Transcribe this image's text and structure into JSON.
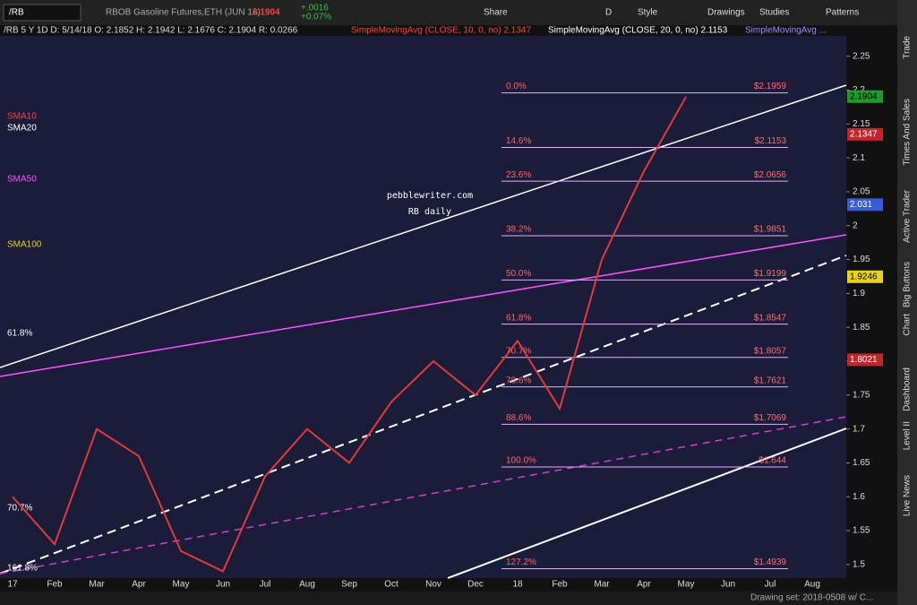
{
  "toolbar": {
    "symbol": "/RB",
    "description": "RBOB Gasoline Futures,ETH (JUN 18)",
    "last": "2.1904",
    "change": "+.0016",
    "change_pct": "+0.07%",
    "buttons": [
      "Share",
      "D",
      "Style",
      "Drawings",
      "Studies",
      "Patterns"
    ]
  },
  "study_bar": {
    "info": "/RB 5 Y 1D  D: 5/14/18  O: 2.1852  H: 2.1942  L: 2.1676  C: 2.1904  R: 0.0266",
    "studies": [
      "SimpleMovingAvg (CLOSE, 10, 0, no)  2.1347",
      "SimpleMovingAvg (CLOSE, 20, 0, no)  2.1153",
      "SimpleMovingAvg ..."
    ]
  },
  "side_tabs": [
    "Trade",
    "Times And Sales",
    "Active Trader",
    "Big Buttons",
    "Chart",
    "Dashboard",
    "Level II",
    "Live News"
  ],
  "watermark": [
    "pebblewriter.com",
    "RB daily"
  ],
  "left_labels": [
    "SMA10",
    "SMA20",
    "SMA50",
    "SMA100",
    "61.8%",
    "70.7%",
    "161.8%"
  ],
  "footer": "Drawing set: 2018-0508 w/ C...",
  "chart_data": {
    "type": "line",
    "categories": [
      "17",
      "Feb",
      "Mar",
      "Apr",
      "May",
      "Jun",
      "Jul",
      "Aug",
      "Sep",
      "Oct",
      "Nov",
      "Dec",
      "18",
      "Feb",
      "Mar",
      "Apr",
      "May",
      "Jun",
      "Jul",
      "Aug"
    ],
    "series": [
      {
        "name": "RB",
        "color": "#e23a3a",
        "values": [
          1.6,
          1.53,
          1.7,
          1.66,
          1.52,
          1.49,
          1.63,
          1.7,
          1.65,
          1.74,
          1.8,
          1.75,
          1.83,
          1.73,
          1.95,
          2.08,
          2.19,
          null,
          null,
          null
        ]
      }
    ],
    "ylim": [
      1.48,
      2.28
    ],
    "yticks": [
      1.5,
      1.55,
      1.6,
      1.65,
      1.7,
      1.75,
      1.8,
      1.85,
      1.9,
      1.95,
      2,
      2.05,
      2.1,
      2.15,
      2.2,
      2.25
    ],
    "grid": false,
    "price_tags": [
      {
        "value": 2.1904,
        "color": "#1f9a2e"
      },
      {
        "value": 2.1347,
        "color": "#c0262b"
      },
      {
        "value": 2.031,
        "color": "#3a5bd8"
      },
      {
        "value": 1.9246,
        "color": "#e8d21d"
      },
      {
        "value": 1.8021,
        "color": "#c0262b"
      }
    ],
    "fib_levels": [
      {
        "pct": "0.0%",
        "value": 2.1959,
        "label": "$2.1959"
      },
      {
        "pct": "14.6%",
        "value": 2.1153,
        "label": "$2.1153"
      },
      {
        "pct": "23.6%",
        "value": 2.0656,
        "label": "$2.0656"
      },
      {
        "pct": "38.2%",
        "value": 1.9851,
        "label": "$1.9851"
      },
      {
        "pct": "50.0%",
        "value": 1.9199,
        "label": "$1.9199"
      },
      {
        "pct": "61.8%",
        "value": 1.8547,
        "label": "$1.8547"
      },
      {
        "pct": "70.7%",
        "value": 1.8057,
        "label": "$1.8057"
      },
      {
        "pct": "78.6%",
        "value": 1.7621,
        "label": "$1.7621"
      },
      {
        "pct": "88.6%",
        "value": 1.7069,
        "label": "$1.7069"
      },
      {
        "pct": "100.0%",
        "value": 1.644,
        "label": "$1.644"
      },
      {
        "pct": "127.2%",
        "value": 1.4939,
        "label": "$1.4939"
      }
    ]
  }
}
